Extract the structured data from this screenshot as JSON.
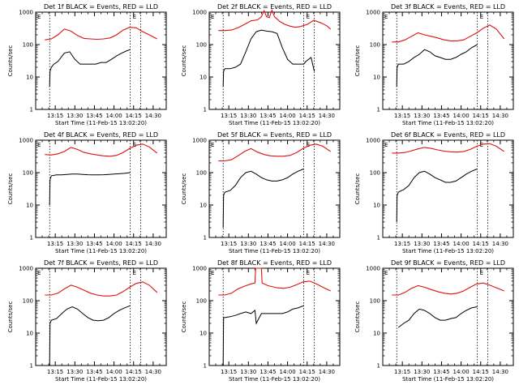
{
  "colors": {
    "events": "#000000",
    "lld": "#dd1111"
  },
  "chart_data": {
    "type": "line",
    "scale": "log",
    "ylim": [
      1,
      1000
    ],
    "y_ticks": [
      "1",
      "10",
      "100",
      "1000"
    ],
    "x_ticks": [
      "13:15",
      "13:30",
      "13:45",
      "14:00",
      "14:15",
      "14:30"
    ],
    "x_ticks_min": [
      15,
      30,
      45,
      60,
      75,
      90
    ],
    "xlim_min": [
      0,
      100
    ],
    "xlabel": "Start Time (11-Feb-15 13:02:20)",
    "ylabel": "Counts/sec",
    "marker_times_min": [
      10.7,
      72.4,
      80.5
    ],
    "marker_labels": [
      "E",
      "E"
    ],
    "panels": [
      {
        "title": "Det 1f BLACK = Events, RED = LLD",
        "lld": {
          "x": [
            7,
            12,
            17,
            22,
            27,
            32,
            37,
            42,
            47,
            52,
            57,
            62,
            67,
            72,
            77,
            82,
            87,
            93
          ],
          "y": [
            140,
            150,
            200,
            300,
            260,
            190,
            155,
            150,
            145,
            150,
            160,
            200,
            280,
            340,
            330,
            250,
            200,
            150
          ]
        },
        "events": {
          "x": [
            10.7,
            11,
            12,
            14,
            17,
            22,
            26,
            30,
            34,
            38,
            42,
            46,
            50,
            54,
            58,
            62,
            66,
            70,
            72.4
          ],
          "y": [
            5,
            15,
            20,
            25,
            30,
            55,
            60,
            35,
            25,
            25,
            25,
            25,
            28,
            28,
            35,
            45,
            55,
            65,
            70
          ]
        }
      },
      {
        "title": "Det 2f BLACK = Events, RED = LLD",
        "lld": {
          "x": [
            7,
            12,
            17,
            22,
            27,
            32,
            37,
            40,
            42,
            44,
            46,
            48,
            50,
            54,
            58,
            62,
            66,
            70,
            75,
            80,
            85,
            90,
            93
          ],
          "y": [
            270,
            270,
            280,
            330,
            420,
            540,
            580,
            720,
            1100,
            720,
            680,
            1150,
            720,
            520,
            420,
            370,
            340,
            360,
            420,
            560,
            480,
            380,
            300
          ]
        },
        "events": {
          "x": [
            10.7,
            11,
            12,
            16,
            20,
            24,
            28,
            32,
            36,
            40,
            44,
            48,
            52,
            56,
            60,
            64,
            68,
            72.4,
            74,
            78,
            80.5
          ],
          "y": [
            5,
            15,
            18,
            18,
            20,
            25,
            60,
            150,
            250,
            280,
            260,
            250,
            220,
            80,
            35,
            25,
            25,
            25,
            30,
            40,
            15
          ]
        }
      },
      {
        "title": "Det 3f BLACK = Events, RED = LLD",
        "lld": {
          "x": [
            7,
            12,
            17,
            22,
            27,
            32,
            37,
            42,
            47,
            52,
            57,
            62,
            67,
            72,
            77,
            82,
            87,
            93
          ],
          "y": [
            120,
            120,
            140,
            180,
            230,
            200,
            180,
            160,
            140,
            130,
            130,
            140,
            180,
            230,
            320,
            400,
            300,
            150
          ]
        },
        "events": {
          "x": [
            10.7,
            11,
            12,
            16,
            20,
            24,
            28,
            32,
            36,
            40,
            44,
            48,
            52,
            56,
            60,
            64,
            68,
            72.4
          ],
          "y": [
            5,
            20,
            25,
            25,
            30,
            40,
            50,
            70,
            60,
            45,
            40,
            35,
            35,
            40,
            50,
            60,
            80,
            100
          ]
        }
      },
      {
        "title": "Det 4f BLACK = Events, RED = LLD",
        "lld": {
          "x": [
            7,
            12,
            17,
            22,
            27,
            32,
            37,
            42,
            47,
            52,
            57,
            62,
            67,
            72,
            77,
            82,
            87,
            93
          ],
          "y": [
            360,
            350,
            380,
            450,
            600,
            520,
            420,
            380,
            350,
            330,
            320,
            340,
            420,
            560,
            700,
            760,
            620,
            400
          ]
        },
        "events": {
          "x": [
            10.7,
            11,
            12,
            16,
            20,
            24,
            28,
            32,
            36,
            40,
            44,
            48,
            52,
            56,
            60,
            64,
            68,
            72.4
          ],
          "y": [
            10,
            60,
            80,
            85,
            85,
            88,
            90,
            90,
            88,
            86,
            85,
            85,
            86,
            88,
            90,
            92,
            95,
            100
          ]
        }
      },
      {
        "title": "Det 5f BLACK = Events, RED = LLD",
        "lld": {
          "x": [
            7,
            12,
            17,
            22,
            27,
            32,
            37,
            42,
            47,
            52,
            57,
            62,
            67,
            72,
            77,
            82,
            87,
            93
          ],
          "y": [
            230,
            230,
            250,
            330,
            450,
            550,
            430,
            360,
            330,
            320,
            320,
            340,
            420,
            560,
            700,
            760,
            650,
            450
          ]
        },
        "events": {
          "x": [
            10.7,
            11,
            12,
            16,
            20,
            24,
            28,
            32,
            36,
            40,
            44,
            48,
            52,
            56,
            60,
            64,
            68,
            72.4
          ],
          "y": [
            2,
            20,
            25,
            28,
            40,
            70,
            100,
            110,
            90,
            70,
            60,
            55,
            55,
            60,
            70,
            90,
            110,
            130
          ]
        }
      },
      {
        "title": "Det 6f BLACK = Events, RED = LLD",
        "lld": {
          "x": [
            7,
            12,
            17,
            22,
            27,
            32,
            37,
            42,
            47,
            52,
            57,
            62,
            67,
            72,
            77,
            82,
            87,
            93
          ],
          "y": [
            400,
            400,
            420,
            470,
            540,
            600,
            560,
            500,
            460,
            440,
            430,
            450,
            520,
            650,
            760,
            780,
            650,
            450
          ]
        },
        "events": {
          "x": [
            10.7,
            11,
            12,
            16,
            20,
            24,
            28,
            32,
            36,
            40,
            44,
            48,
            52,
            56,
            60,
            64,
            68,
            72.4
          ],
          "y": [
            3,
            20,
            25,
            30,
            40,
            70,
            100,
            110,
            90,
            70,
            60,
            50,
            50,
            55,
            70,
            90,
            110,
            130
          ]
        }
      },
      {
        "title": "Det 7f BLACK = Events, RED = LLD",
        "lld": {
          "x": [
            7,
            12,
            17,
            22,
            27,
            32,
            37,
            42,
            47,
            52,
            57,
            62,
            67,
            72,
            77,
            82,
            87,
            93
          ],
          "y": [
            150,
            150,
            170,
            230,
            300,
            260,
            210,
            170,
            150,
            140,
            140,
            150,
            190,
            260,
            340,
            380,
            300,
            180
          ]
        },
        "events": {
          "x": [
            10.7,
            11,
            12,
            16,
            20,
            24,
            28,
            32,
            36,
            40,
            44,
            48,
            52,
            56,
            60,
            64,
            68,
            72.4
          ],
          "y": [
            1,
            20,
            25,
            28,
            40,
            55,
            65,
            55,
            40,
            30,
            25,
            24,
            25,
            30,
            40,
            50,
            60,
            70
          ]
        }
      },
      {
        "title": "Det 8f BLACK = Events, RED = LLD",
        "lld": {
          "x": [
            7,
            12,
            17,
            22,
            27,
            32,
            35,
            35.5,
            40,
            40.5,
            45,
            52,
            57,
            62,
            67,
            72,
            77,
            82,
            87,
            93
          ],
          "y": [
            150,
            150,
            170,
            230,
            280,
            330,
            350,
            1000,
            1000,
            350,
            290,
            250,
            240,
            260,
            310,
            380,
            400,
            330,
            260,
            200
          ]
        },
        "events": {
          "x": [
            10.7,
            11,
            12,
            16,
            20,
            24,
            28,
            32,
            35,
            36,
            40,
            44,
            48,
            52,
            56,
            60,
            64,
            68,
            72.4
          ],
          "y": [
            1,
            30,
            30,
            32,
            35,
            40,
            45,
            40,
            50,
            20,
            40,
            40,
            40,
            40,
            40,
            45,
            55,
            60,
            70
          ]
        }
      },
      {
        "title": "Det 9f BLACK = Events, RED = LLD",
        "lld": {
          "x": [
            7,
            12,
            17,
            22,
            27,
            32,
            37,
            42,
            47,
            52,
            57,
            62,
            67,
            72,
            77,
            82,
            87,
            93
          ],
          "y": [
            150,
            150,
            180,
            240,
            290,
            260,
            220,
            190,
            170,
            160,
            170,
            200,
            260,
            330,
            350,
            300,
            250,
            200
          ]
        },
        "events": {
          "x": [
            12,
            16,
            20,
            24,
            28,
            32,
            36,
            40,
            44,
            48,
            52,
            56,
            60,
            64,
            68,
            72.4
          ],
          "y": [
            15,
            20,
            25,
            40,
            55,
            50,
            40,
            30,
            25,
            25,
            28,
            30,
            40,
            50,
            60,
            65
          ]
        }
      }
    ]
  }
}
